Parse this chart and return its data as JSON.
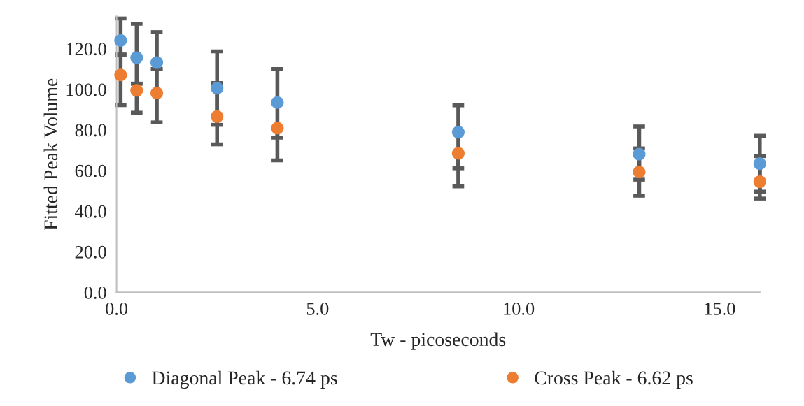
{
  "chart_data": {
    "type": "scatter",
    "xlabel": "Tw - picoseconds",
    "ylabel": "Fitted Peak Volume",
    "x": [
      0.1,
      0.5,
      1.0,
      2.5,
      4.0,
      8.5,
      13.0,
      16.0
    ],
    "series": [
      {
        "name": "Diagonal Peak - 6.74 ps",
        "color": "#5b9bd5",
        "values": [
          124.1,
          115.6,
          113.2,
          100.6,
          93.5,
          78.9,
          68.1,
          63.4
        ],
        "errors": [
          [
            117.1,
            134.9
          ],
          [
            102.8,
            132.3
          ],
          [
            110.0,
            128.2
          ],
          [
            82.5,
            118.7
          ],
          [
            76.2,
            110.0
          ],
          [
            61.1,
            92.1
          ],
          [
            55.5,
            81.7
          ],
          [
            49.6,
            77.1
          ]
        ]
      },
      {
        "name": "Cross Peak - 6.62 ps",
        "color": "#ed7d31",
        "values": [
          107.1,
          99.5,
          98.2,
          86.6,
          80.9,
          68.5,
          59.3,
          54.5
        ],
        "errors": [
          [
            92.2,
            117.1
          ],
          [
            88.5,
            102.8
          ],
          [
            83.7,
            110.0
          ],
          [
            72.9,
            103.1
          ],
          [
            65.0,
            80.9
          ],
          [
            52.2,
            68.5
          ],
          [
            47.6,
            70.9
          ],
          [
            46.2,
            67.1
          ]
        ]
      }
    ],
    "xlim": [
      0,
      16
    ],
    "ylim": [
      0,
      136
    ],
    "xticks": [
      {
        "value": 0,
        "label": "0.0"
      },
      {
        "value": 5,
        "label": "5.0"
      },
      {
        "value": 10,
        "label": "10.0"
      },
      {
        "value": 15,
        "label": "15.0"
      }
    ],
    "yticks": [
      {
        "value": 0,
        "label": "0.0"
      },
      {
        "value": 20,
        "label": "20.0"
      },
      {
        "value": 40,
        "label": "40.0"
      },
      {
        "value": 60,
        "label": "60.0"
      },
      {
        "value": 80,
        "label": "80.0"
      },
      {
        "value": 100,
        "label": "100.0"
      },
      {
        "value": 120,
        "label": "120.0"
      }
    ],
    "marker": "circle",
    "legend": "bottom",
    "grid": false
  }
}
